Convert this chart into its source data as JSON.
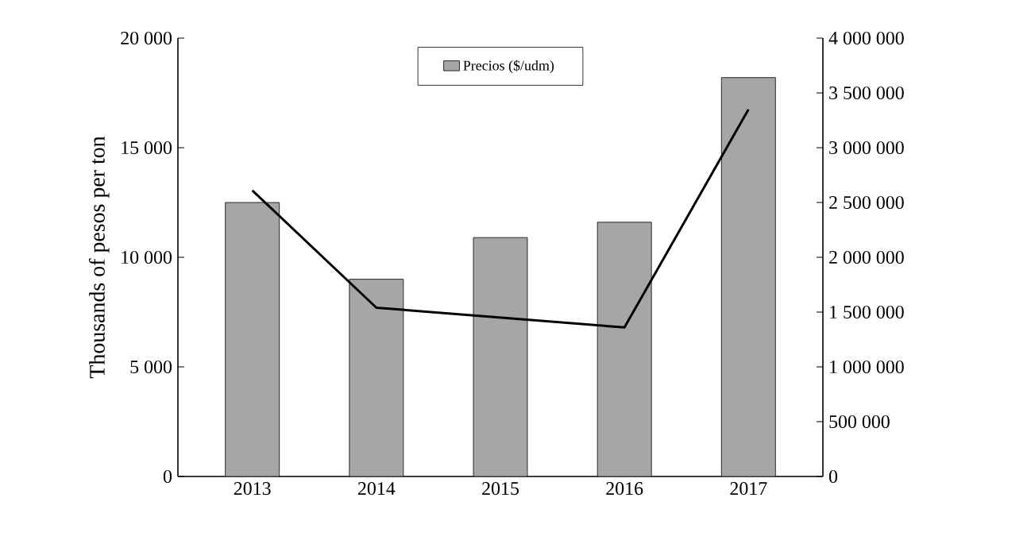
{
  "chart_data": {
    "type": "bar",
    "categories": [
      "2013",
      "2014",
      "2015",
      "2016",
      "2017"
    ],
    "series": [
      {
        "name": "Precios ($/udm)",
        "color": "#a6a6a6",
        "values": [
          12500,
          9000,
          10900,
          11600,
          18200
        ]
      },
      {
        "type": "line",
        "axis": "y2",
        "color": "#000000",
        "values": [
          2610000,
          1540000,
          1450000,
          1360000,
          3350000
        ]
      }
    ],
    "ylabel": "Thousands of pesos per ton",
    "ylim": [
      0,
      20000
    ],
    "yticks": [
      0,
      {
        "value": 5000,
        "label": "5 000"
      },
      {
        "value": 10000,
        "label": "10 000"
      },
      {
        "value": 15000,
        "label": "15 000"
      },
      {
        "value": 20000,
        "label": "20 000"
      }
    ],
    "y2lim": [
      0,
      4000000
    ],
    "y2ticks": [
      0,
      {
        "value": 500000,
        "label": "500 000"
      },
      {
        "value": 1000000,
        "label": "1 000 000"
      },
      {
        "value": 1500000,
        "label": "1 500 000"
      },
      {
        "value": 2000000,
        "label": "2 000 000"
      },
      {
        "value": 2500000,
        "label": "2 500 000"
      },
      {
        "value": 3000000,
        "label": "3 000 000"
      },
      {
        "value": 3500000,
        "label": "3 500 000"
      },
      {
        "value": 4000000,
        "label": "4 000 000"
      }
    ],
    "legend": "top"
  }
}
